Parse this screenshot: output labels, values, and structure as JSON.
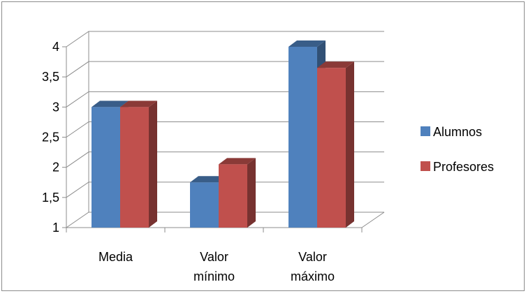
{
  "chart_data": {
    "type": "bar",
    "title": "",
    "xlabel": "",
    "ylabel": "",
    "categories": [
      [
        "Media"
      ],
      [
        "Valor",
        "mínimo"
      ],
      [
        "Valor",
        "máximo"
      ]
    ],
    "series": [
      {
        "name": "Alumnos",
        "color": "#4f81bd",
        "values": [
          3.0,
          1.75,
          4.0
        ]
      },
      {
        "name": "Profesores",
        "color": "#c0504d",
        "values": [
          3.0,
          2.05,
          3.65
        ]
      }
    ],
    "ylim": [
      1,
      4
    ],
    "yticks": [
      "1",
      "1,5",
      "2",
      "2,5",
      "3",
      "3,5",
      "4"
    ],
    "ytick_values": [
      1,
      1.5,
      2,
      2.5,
      3,
      3.5,
      4
    ],
    "grid": true,
    "style": "3d-clustered-column",
    "legend_position": "right"
  }
}
